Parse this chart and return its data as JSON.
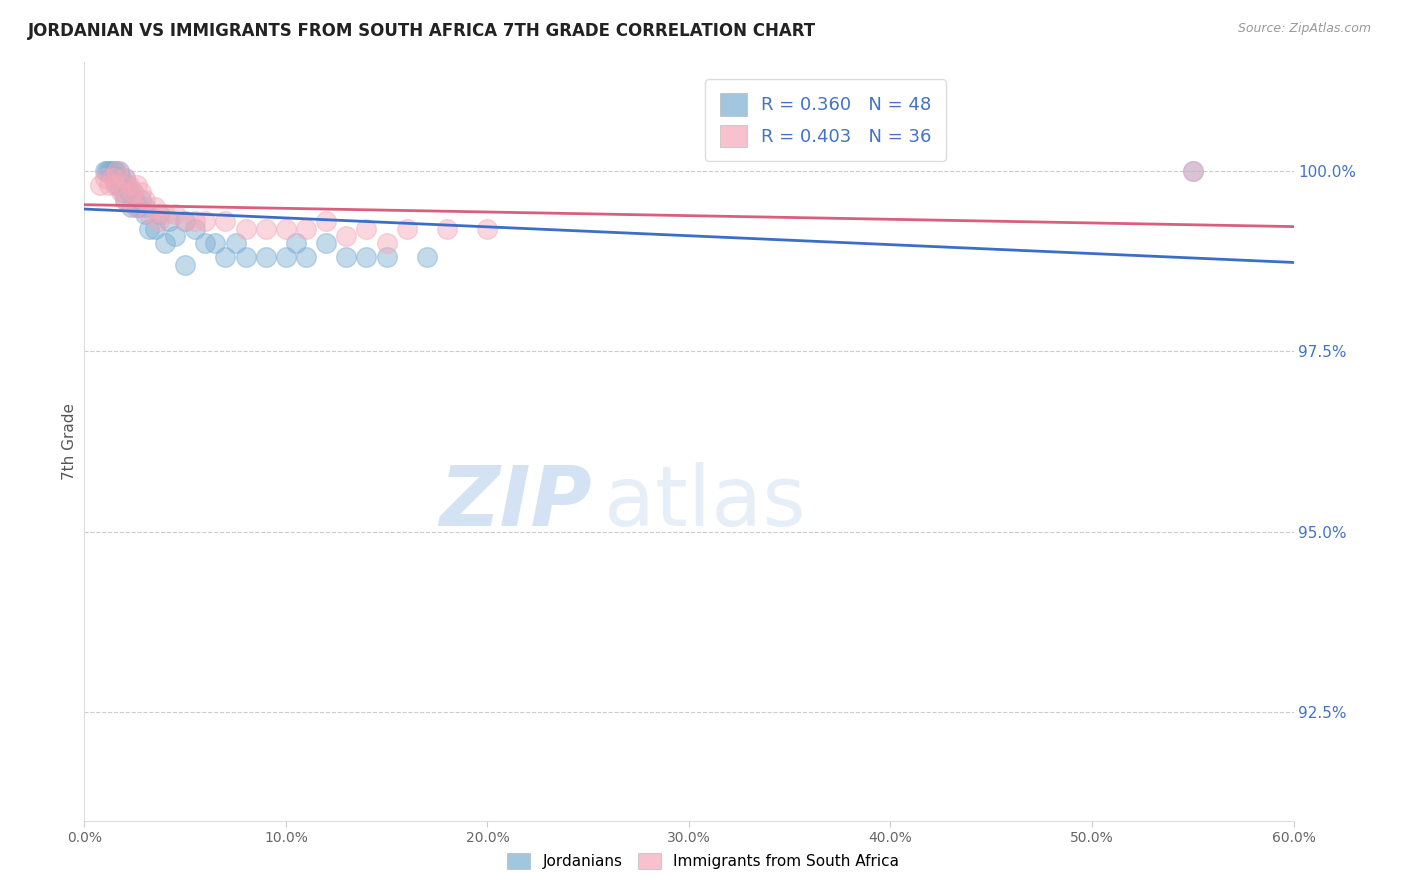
{
  "title": "JORDANIAN VS IMMIGRANTS FROM SOUTH AFRICA 7TH GRADE CORRELATION CHART",
  "source": "Source: ZipAtlas.com",
  "ylabel": "7th Grade",
  "ylabel_right_ticks": [
    "100.0%",
    "97.5%",
    "95.0%",
    "92.5%"
  ],
  "ylabel_right_vals": [
    100.0,
    97.5,
    95.0,
    92.5
  ],
  "legend_blue": "R = 0.360   N = 48",
  "legend_pink": "R = 0.403   N = 36",
  "blue_color": "#7BAFD4",
  "pink_color": "#F4A8B8",
  "blue_line_color": "#3B6FC7",
  "pink_line_color": "#D95F7F",
  "watermark_zip": "ZIP",
  "watermark_atlas": "atlas",
  "xmin": 0.0,
  "xmax": 60.0,
  "ymin": 91.0,
  "ymax": 101.5,
  "xticks": [
    0.0,
    10.0,
    20.0,
    30.0,
    40.0,
    50.0,
    60.0
  ],
  "xtick_labels": [
    "0.0%",
    "10.0%",
    "20.0%",
    "30.0%",
    "40.0%",
    "50.0%",
    "60.0%"
  ],
  "blue_x": [
    1.0,
    1.2,
    1.4,
    1.5,
    1.5,
    1.6,
    1.7,
    1.8,
    1.8,
    2.0,
    2.0,
    2.1,
    2.1,
    2.2,
    2.3,
    2.4,
    2.4,
    2.5,
    2.6,
    2.7,
    2.8,
    2.9,
    3.0,
    3.0,
    3.1,
    3.2,
    3.3,
    3.4,
    3.5,
    3.6,
    3.7,
    4.0,
    4.2,
    4.5,
    4.8,
    5.0,
    5.2,
    5.5,
    6.0,
    7.0,
    7.5,
    8.0,
    9.0,
    10.0,
    11.0,
    13.0,
    15.0,
    55.0
  ],
  "blue_y": [
    100.0,
    100.0,
    100.0,
    100.0,
    100.0,
    99.8,
    99.8,
    99.9,
    99.7,
    99.8,
    99.6,
    99.9,
    99.5,
    99.8,
    99.6,
    99.7,
    99.4,
    99.6,
    99.3,
    99.7,
    99.5,
    99.5,
    99.4,
    99.7,
    99.4,
    99.5,
    99.6,
    99.5,
    99.3,
    99.5,
    99.3,
    99.4,
    99.2,
    99.3,
    99.4,
    99.4,
    99.3,
    99.4,
    99.3,
    99.3,
    99.3,
    99.2,
    99.2,
    99.3,
    99.3,
    99.3,
    99.4,
    100.0
  ],
  "pink_x": [
    0.8,
    1.0,
    1.2,
    1.4,
    1.5,
    1.6,
    1.8,
    2.0,
    2.0,
    2.2,
    2.3,
    2.4,
    2.5,
    2.6,
    2.7,
    2.8,
    3.0,
    3.2,
    3.5,
    3.7,
    4.0,
    4.2,
    4.5,
    5.0,
    5.5,
    6.0,
    6.5,
    7.0,
    8.0,
    9.0,
    10.0,
    11.0,
    12.0,
    14.0,
    16.0,
    55.0
  ],
  "pink_y": [
    99.7,
    99.8,
    99.7,
    99.8,
    99.7,
    99.9,
    99.6,
    99.8,
    99.5,
    99.7,
    99.6,
    99.8,
    99.5,
    99.7,
    99.5,
    99.7,
    99.6,
    99.5,
    99.5,
    99.6,
    99.4,
    99.5,
    99.5,
    99.4,
    99.4,
    99.4,
    99.5,
    99.4,
    99.3,
    99.3,
    99.3,
    99.3,
    99.4,
    99.2,
    99.3,
    100.0
  ]
}
